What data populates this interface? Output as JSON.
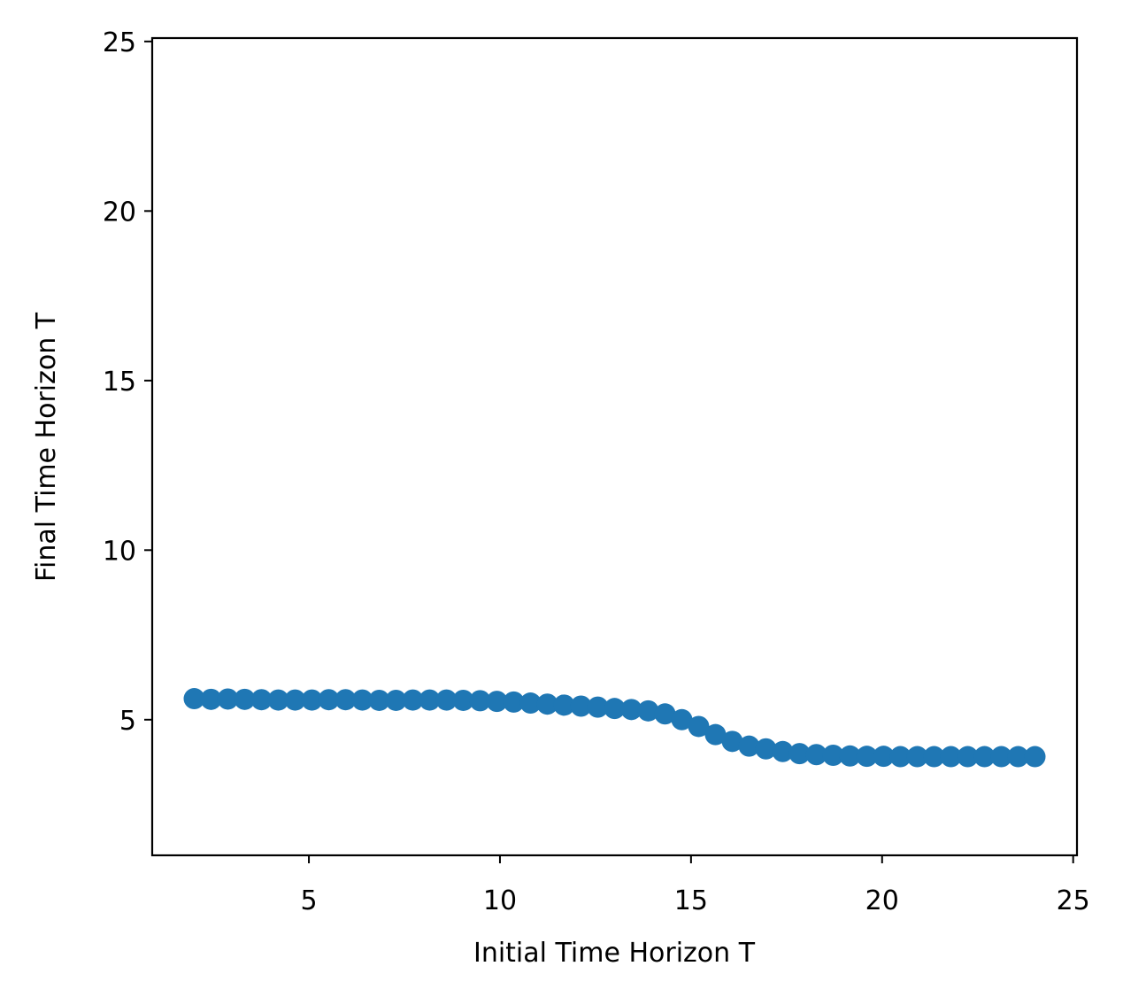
{
  "chart_data": {
    "type": "scatter",
    "title": "",
    "xlabel": "Initial Time Horizon T",
    "ylabel": "Final Time Horizon T",
    "xlim": [
      0.9,
      25.1
    ],
    "ylim": [
      1.0,
      25.1
    ],
    "xticks": [
      5,
      10,
      15,
      20,
      25
    ],
    "yticks": [
      5,
      10,
      15,
      20,
      25
    ],
    "grid": false,
    "marker_color": "#1f77b4",
    "series": [
      {
        "x": [
          2.0,
          2.44,
          2.88,
          3.32,
          3.76,
          4.2,
          4.64,
          5.08,
          5.52,
          5.96,
          6.4,
          6.84,
          7.28,
          7.72,
          8.16,
          8.6,
          9.04,
          9.48,
          9.92,
          10.36,
          10.8,
          11.24,
          11.68,
          12.12,
          12.56,
          13.0,
          13.44,
          13.88,
          14.32,
          14.76,
          15.2,
          15.64,
          16.08,
          16.52,
          16.96,
          17.4,
          17.84,
          18.28,
          18.72,
          19.16,
          19.6,
          20.04,
          20.48,
          20.92,
          21.36,
          21.8,
          22.24,
          22.68,
          23.12,
          23.56,
          24.0
        ],
        "y": [
          5.62,
          5.6,
          5.61,
          5.6,
          5.59,
          5.58,
          5.58,
          5.58,
          5.59,
          5.59,
          5.58,
          5.57,
          5.57,
          5.58,
          5.58,
          5.58,
          5.57,
          5.56,
          5.54,
          5.52,
          5.49,
          5.46,
          5.43,
          5.4,
          5.37,
          5.33,
          5.3,
          5.26,
          5.17,
          5.0,
          4.8,
          4.56,
          4.36,
          4.22,
          4.14,
          4.06,
          4.0,
          3.97,
          3.95,
          3.93,
          3.92,
          3.92,
          3.91,
          3.91,
          3.91,
          3.91,
          3.91,
          3.91,
          3.91,
          3.91,
          3.91
        ]
      }
    ]
  }
}
